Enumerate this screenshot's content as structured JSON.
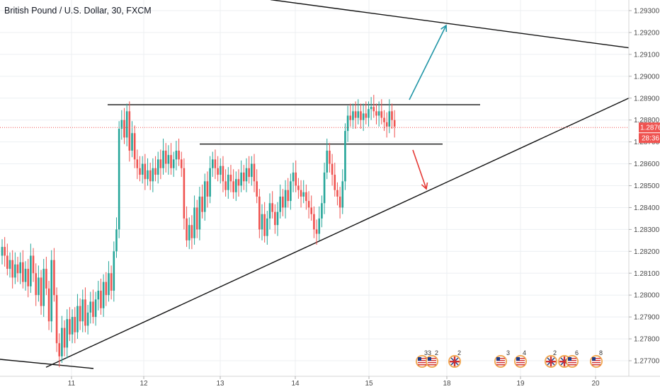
{
  "title": "British Pound / U.S. Dollar, 30, FXCM",
  "chart_data": {
    "type": "candlestick",
    "title": "British Pound / U.S. Dollar, 30, FXCM",
    "xlabel": "",
    "ylabel": "",
    "x_ticks": [
      "11",
      "12",
      "13",
      "14",
      "15",
      "18",
      "19",
      "20"
    ],
    "y_ticks": [
      "1.27700",
      "1.27800",
      "1.27900",
      "1.28000",
      "1.28100",
      "1.28200",
      "1.28300",
      "1.28400",
      "1.28500",
      "1.28600",
      "1.28700",
      "1.28800",
      "1.28900",
      "1.29000",
      "1.29100",
      "1.29200",
      "1.29300"
    ],
    "ylim": [
      1.2766,
      1.2936
    ],
    "last_price": "1.28766",
    "countdown": "28:36",
    "up_color": "#26a69a",
    "down_color": "#ef5350",
    "grid": true,
    "series": [
      {
        "values": [
          1.2822,
          1.2818,
          1.2812,
          1.2816,
          1.2808,
          1.2814,
          1.281,
          1.2815,
          1.2806,
          1.2812,
          1.2804,
          1.2818,
          1.281,
          1.28,
          1.2808,
          1.2795,
          1.2812,
          1.2803,
          1.2788,
          1.2816,
          1.28,
          1.2778,
          1.2772,
          1.2785,
          1.2776,
          1.2789,
          1.2782,
          1.279,
          1.2783,
          1.2795,
          1.2788,
          1.2798,
          1.2786,
          1.2792,
          1.2797,
          1.279,
          1.2798,
          1.2802,
          1.2794,
          1.2806,
          1.28,
          1.281,
          1.2802,
          1.282,
          1.283,
          1.2876,
          1.288,
          1.2872,
          1.2884,
          1.2866,
          1.2874,
          1.2862,
          1.2858,
          1.2855,
          1.286,
          1.2853,
          1.2857,
          1.2852,
          1.2858,
          1.2855,
          1.2862,
          1.2858,
          1.2866,
          1.286,
          1.2864,
          1.2858,
          1.2862,
          1.2866,
          1.2862,
          1.2858,
          1.2835,
          1.2825,
          1.2832,
          1.2826,
          1.284,
          1.283,
          1.2845,
          1.2838,
          1.2852,
          1.2845,
          1.2858,
          1.2862,
          1.2858,
          1.2855,
          1.2859,
          1.2852,
          1.2848,
          1.2855,
          1.2852,
          1.2847,
          1.2853,
          1.285,
          1.2856,
          1.2852,
          1.2858,
          1.2854,
          1.286,
          1.2852,
          1.2845,
          1.283,
          1.2837,
          1.2827,
          1.2835,
          1.2842,
          1.2838,
          1.2832,
          1.2838,
          1.2845,
          1.284,
          1.2848,
          1.2843,
          1.2852,
          1.2856,
          1.285,
          1.2848,
          1.2845,
          1.2847,
          1.2843,
          1.284,
          1.2837,
          1.283,
          1.2828,
          1.2835,
          1.2842,
          1.2856,
          1.2866,
          1.286,
          1.2855,
          1.2848,
          1.2845,
          1.284,
          1.2852,
          1.2875,
          1.2882,
          1.288,
          1.2884,
          1.2881,
          1.2884,
          1.288,
          1.2883,
          1.2881,
          1.2885,
          1.2886,
          1.2884,
          1.2882,
          1.2884,
          1.2881,
          1.2879,
          1.2877,
          1.2884,
          1.288,
          1.2877
        ]
      }
    ],
    "trend_lines": [
      {
        "from": [
          "13",
          1.2935
        ],
        "to": [
          "20",
          1.2913
        ]
      },
      {
        "from": [
          "11",
          1.2767
        ],
        "to": [
          "20",
          1.289
        ]
      },
      {
        "from": [
          "11",
          1.2887
        ],
        "to": [
          "18",
          1.2887
        ]
      },
      {
        "from": [
          "13",
          1.2869
        ],
        "to": [
          "18",
          1.2869
        ]
      }
    ],
    "arrows": [
      {
        "direction": "up",
        "color": "#2196a7"
      },
      {
        "direction": "down",
        "color": "#e53935"
      }
    ],
    "event_counts": [
      "33",
      "2",
      "2",
      "3",
      "4",
      "2",
      "6",
      "8"
    ]
  }
}
